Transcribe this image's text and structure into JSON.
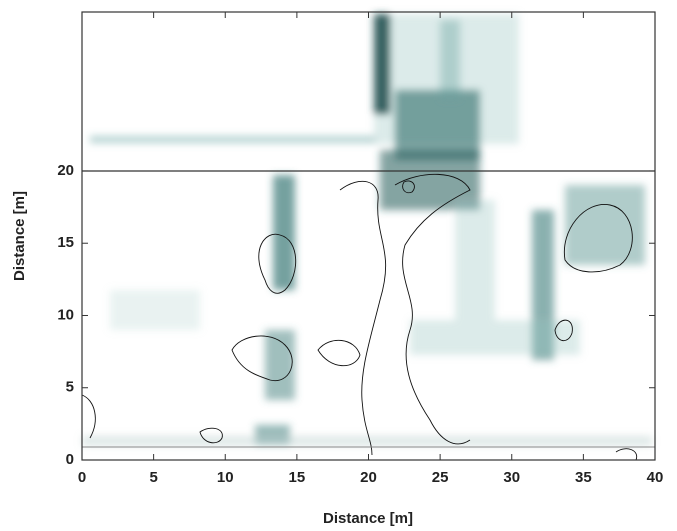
{
  "chart_data": {
    "type": "heatmap",
    "xlabel": "Distance [m]",
    "ylabel": "Distance [m]",
    "xlim": [
      0,
      40
    ],
    "ylim": [
      0,
      31
    ],
    "xticks": [
      0,
      5,
      10,
      15,
      20,
      25,
      30,
      35,
      40
    ],
    "yticks": [
      0,
      5,
      10,
      15,
      20
    ]
  }
}
